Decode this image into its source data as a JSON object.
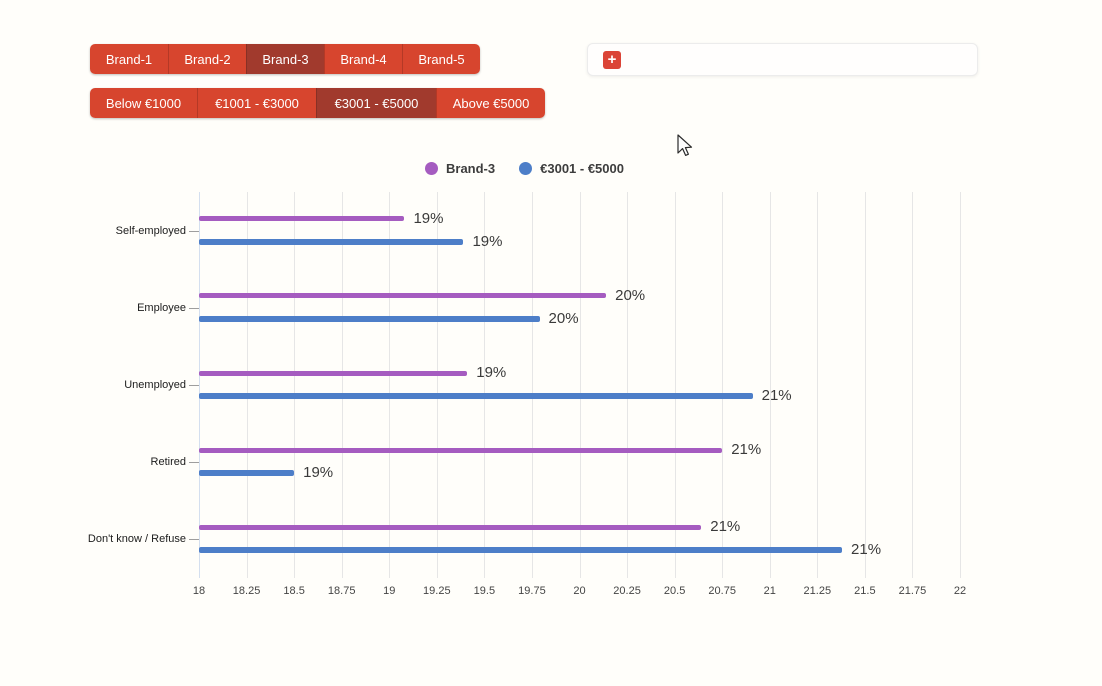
{
  "filters": {
    "brands": {
      "items": [
        {
          "label": "Brand-1",
          "selected": false
        },
        {
          "label": "Brand-2",
          "selected": false
        },
        {
          "label": "Brand-3",
          "selected": true
        },
        {
          "label": "Brand-4",
          "selected": false
        },
        {
          "label": "Brand-5",
          "selected": false
        }
      ]
    },
    "income": {
      "items": [
        {
          "label": "Below €1000",
          "selected": false
        },
        {
          "label": "€1001 - €3000",
          "selected": false
        },
        {
          "label": "€3001 - €5000",
          "selected": true
        },
        {
          "label": "Above €5000",
          "selected": false
        }
      ]
    }
  },
  "toolbar": {
    "add_icon": "+"
  },
  "colors": {
    "button_red": "#d7452e",
    "button_red_selected": "#a13a2d",
    "series_purple": "#a55cc0",
    "series_blue": "#4d7ec8"
  },
  "chart_data": {
    "type": "bar",
    "orientation": "horizontal",
    "title": "",
    "xlabel": "",
    "ylabel": "",
    "categories": [
      "Self-employed",
      "Employee",
      "Unemployed",
      "Retired",
      "Don't know / Refuse"
    ],
    "series": [
      {
        "name": "Brand-3",
        "color": "#a55cc0",
        "values": [
          19.08,
          20.14,
          19.41,
          20.75,
          20.64
        ],
        "labels": [
          "19%",
          "20%",
          "19%",
          "21%",
          "21%"
        ]
      },
      {
        "name": "€3001 - €5000",
        "color": "#4d7ec8",
        "values": [
          19.39,
          19.79,
          20.91,
          18.5,
          21.38
        ],
        "labels": [
          "19%",
          "20%",
          "21%",
          "19%",
          "21%"
        ]
      }
    ],
    "xlim": [
      18,
      22
    ],
    "xticks": [
      "18",
      "18.25",
      "18.5",
      "18.75",
      "19",
      "19.25",
      "19.5",
      "19.75",
      "20",
      "20.25",
      "20.5",
      "20.75",
      "21",
      "21.25",
      "21.5",
      "21.75",
      "22"
    ],
    "grid": true,
    "legend_position": "top"
  }
}
